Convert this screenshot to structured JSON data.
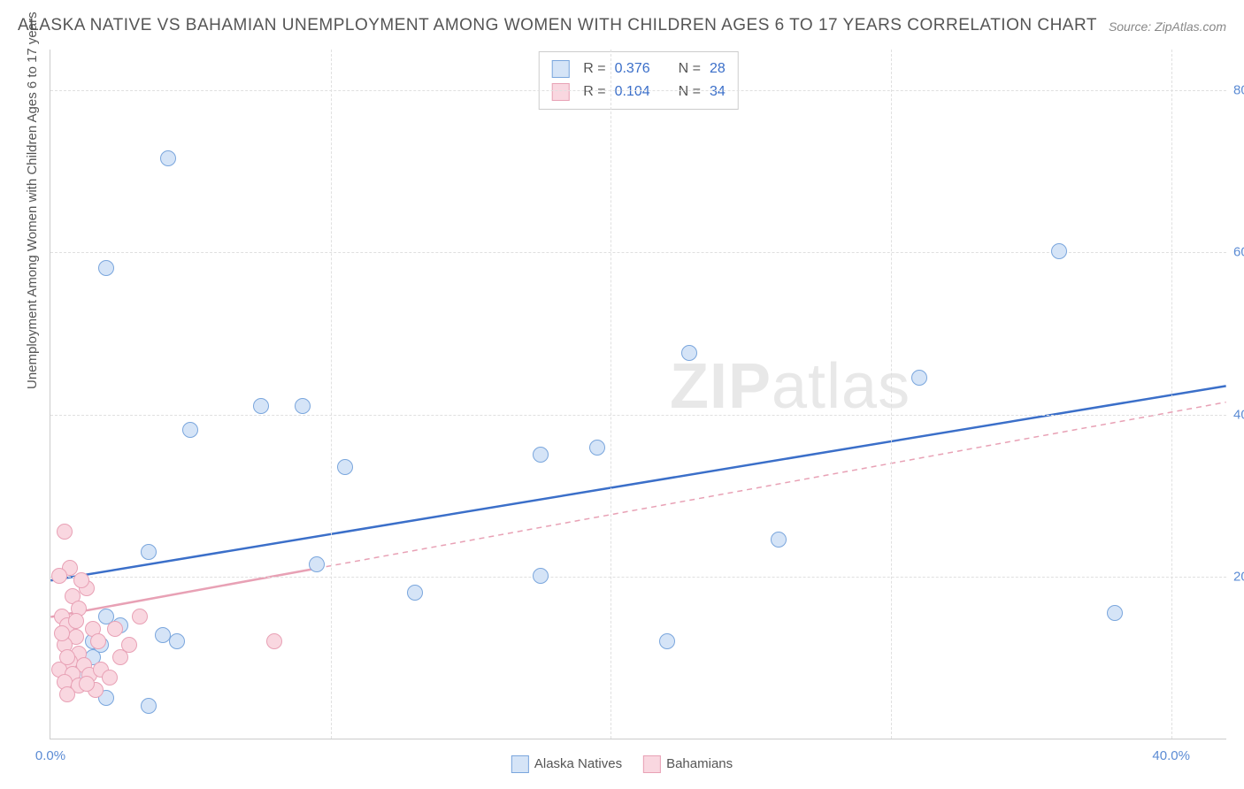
{
  "title": "ALASKA NATIVE VS BAHAMIAN UNEMPLOYMENT AMONG WOMEN WITH CHILDREN AGES 6 TO 17 YEARS CORRELATION CHART",
  "source": "Source: ZipAtlas.com",
  "ylabel": "Unemployment Among Women with Children Ages 6 to 17 years",
  "watermark": {
    "bold": "ZIP",
    "rest": "atlas"
  },
  "chart": {
    "type": "scatter",
    "background_color": "#ffffff",
    "grid_color": "#e0e0e0",
    "axis_color": "#cccccc",
    "xlim": [
      0,
      42
    ],
    "ylim": [
      0,
      85
    ],
    "xticks": [
      0,
      40
    ],
    "xtick_labels": [
      "0.0%",
      "40.0%"
    ],
    "yticks": [
      20,
      40,
      60,
      80
    ],
    "ytick_labels": [
      "20.0%",
      "40.0%",
      "60.0%",
      "80.0%"
    ],
    "tick_label_color": "#5b8bd4",
    "tick_fontsize": 15,
    "label_fontsize": 15,
    "label_color": "#555555",
    "title_fontsize": 19,
    "title_color": "#555555",
    "marker_radius": 9,
    "trend_line_width": 2.5,
    "dash_pattern": "6,5"
  },
  "legend_bottom": [
    {
      "label": "Alaska Natives",
      "fill": "#d5e4f7",
      "stroke": "#7aa6dd"
    },
    {
      "label": "Bahamians",
      "fill": "#f9d7e0",
      "stroke": "#e8a1b5"
    }
  ],
  "stats_legend": [
    {
      "swatch_fill": "#d5e4f7",
      "swatch_stroke": "#7aa6dd",
      "r_label": "R =",
      "r_value": "0.376",
      "n_label": "N =",
      "n_value": "28"
    },
    {
      "swatch_fill": "#f9d7e0",
      "swatch_stroke": "#e8a1b5",
      "r_label": "R =",
      "r_value": "0.104",
      "n_label": "N =",
      "n_value": "34"
    }
  ],
  "series": [
    {
      "name": "Alaska Natives",
      "fill": "#d5e4f7",
      "stroke": "#7aa6dd",
      "trend_color": "#3b6fc9",
      "trend": {
        "x1": 0,
        "y1": 19.5,
        "x2": 42,
        "y2": 43.5,
        "solid_until_x": 42
      },
      "points": [
        [
          4.2,
          71.5
        ],
        [
          2.0,
          58.0
        ],
        [
          5.0,
          38.0
        ],
        [
          7.5,
          41.0
        ],
        [
          9.0,
          41.0
        ],
        [
          10.5,
          33.5
        ],
        [
          17.5,
          35.0
        ],
        [
          19.5,
          35.8
        ],
        [
          22.8,
          47.5
        ],
        [
          31.0,
          44.5
        ],
        [
          36.0,
          60.0
        ],
        [
          3.5,
          23.0
        ],
        [
          4.0,
          12.8
        ],
        [
          9.5,
          21.5
        ],
        [
          13.0,
          18.0
        ],
        [
          17.5,
          20.0
        ],
        [
          22.0,
          12.0
        ],
        [
          26.0,
          24.5
        ],
        [
          38.0,
          15.5
        ],
        [
          3.5,
          4.0
        ],
        [
          1.5,
          12.0
        ],
        [
          2.0,
          15.0
        ],
        [
          2.5,
          14.0
        ],
        [
          1.0,
          8.0
        ],
        [
          2.0,
          5.0
        ],
        [
          4.5,
          12.0
        ],
        [
          1.5,
          10.0
        ],
        [
          1.8,
          11.5
        ]
      ]
    },
    {
      "name": "Bahamians",
      "fill": "#f9d7e0",
      "stroke": "#e8a1b5",
      "trend_color": "#e8a1b5",
      "trend": {
        "x1": 0,
        "y1": 15.0,
        "x2": 42,
        "y2": 41.5,
        "solid_until_x": 9.5
      },
      "points": [
        [
          0.5,
          25.5
        ],
        [
          0.7,
          21.0
        ],
        [
          0.3,
          20.0
        ],
        [
          0.8,
          17.5
        ],
        [
          1.0,
          16.0
        ],
        [
          0.4,
          15.0
        ],
        [
          0.6,
          14.0
        ],
        [
          1.3,
          18.5
        ],
        [
          0.9,
          12.5
        ],
        [
          1.5,
          13.5
        ],
        [
          0.5,
          11.5
        ],
        [
          1.0,
          10.5
        ],
        [
          0.7,
          9.5
        ],
        [
          1.2,
          9.0
        ],
        [
          0.3,
          8.5
        ],
        [
          0.8,
          8.0
        ],
        [
          1.4,
          7.8
        ],
        [
          1.8,
          8.5
        ],
        [
          0.5,
          7.0
        ],
        [
          1.0,
          6.5
        ],
        [
          1.6,
          6.0
        ],
        [
          2.1,
          7.5
        ],
        [
          0.6,
          5.5
        ],
        [
          1.3,
          6.8
        ],
        [
          2.3,
          13.5
        ],
        [
          2.5,
          10.0
        ],
        [
          2.8,
          11.5
        ],
        [
          3.2,
          15.0
        ],
        [
          8.0,
          12.0
        ],
        [
          1.1,
          19.5
        ],
        [
          0.4,
          13.0
        ],
        [
          0.9,
          14.5
        ],
        [
          1.7,
          12.0
        ],
        [
          0.6,
          10.0
        ]
      ]
    }
  ]
}
